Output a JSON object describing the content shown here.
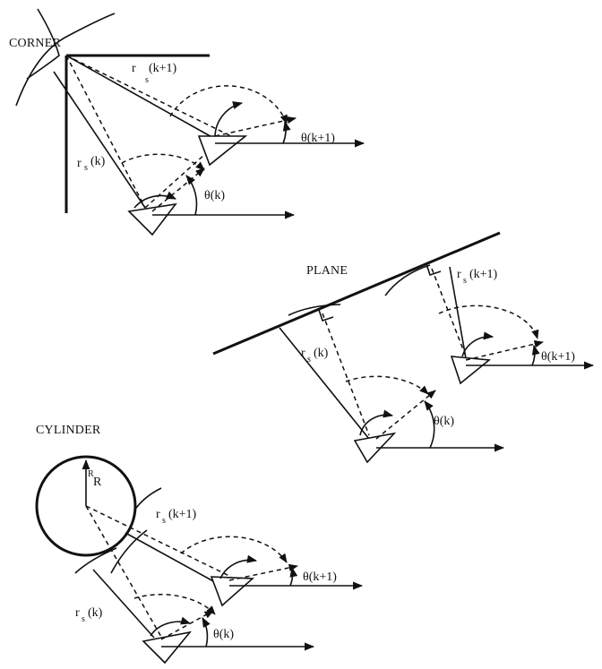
{
  "panels": {
    "corner": {
      "title": "CORNER",
      "labels": [
        {
          "id": "rs-k1",
          "main": "r",
          "sub": "s",
          "arg": "(k+1)"
        },
        {
          "id": "theta-k1",
          "main": "θ(k+1)"
        },
        {
          "id": "rs-k",
          "main": "r",
          "sub": "s",
          "arg": "(k)"
        },
        {
          "id": "theta-k",
          "main": "θ(k)"
        }
      ]
    },
    "plane": {
      "title": "PLANE",
      "labels": [
        {
          "id": "rs-k1",
          "main": "r",
          "sub": "s",
          "arg": "(k+1)"
        },
        {
          "id": "theta-k1",
          "main": "θ(k+1)"
        },
        {
          "id": "rs-k",
          "main": "r",
          "sub": "s",
          "arg": "(k)"
        },
        {
          "id": "theta-k",
          "main": "θ(k)"
        }
      ]
    },
    "cylinder": {
      "title": "CYLINDER",
      "radius_label": {
        "main": "R",
        "sub": "R"
      },
      "labels": [
        {
          "id": "rs-k1",
          "main": "r",
          "sub": "s",
          "arg": "(k+1)"
        },
        {
          "id": "theta-k1",
          "main": "θ(k+1)"
        },
        {
          "id": "rs-k",
          "main": "r",
          "sub": "s",
          "arg": "(k)"
        },
        {
          "id": "theta-k",
          "main": "θ(k)"
        }
      ]
    }
  }
}
